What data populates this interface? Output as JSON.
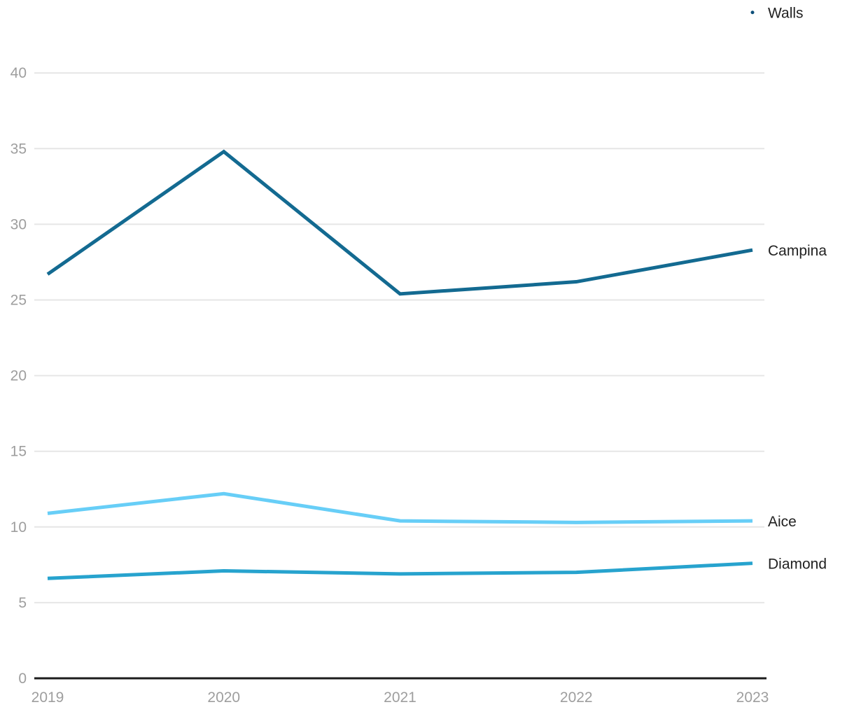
{
  "chart_data": {
    "type": "line",
    "title": "",
    "xlabel": "",
    "ylabel": "",
    "x": [
      2019,
      2020,
      2021,
      2022,
      2023
    ],
    "x_tick_labels": [
      "2019",
      "2020",
      "2021",
      "2022",
      "2023"
    ],
    "series": [
      {
        "name": "Walls",
        "color": "#0d4f79",
        "values": [
          null,
          null,
          null,
          null,
          44
        ]
      },
      {
        "name": "Campina",
        "color": "#136a91",
        "values": [
          26.7,
          34.8,
          25.4,
          26.2,
          28.3
        ]
      },
      {
        "name": "Aice",
        "color": "#67cef7",
        "values": [
          10.9,
          12.2,
          10.4,
          10.3,
          10.4
        ]
      },
      {
        "name": "Diamond",
        "color": "#27a3ce",
        "values": [
          6.6,
          7.1,
          6.9,
          7.0,
          7.6
        ]
      }
    ],
    "ylim": [
      0,
      44
    ],
    "yticks": [
      0,
      5,
      10,
      15,
      20,
      25,
      30,
      35,
      40
    ],
    "y_tick_labels": [
      "0",
      "5",
      "10",
      "15",
      "20",
      "25",
      "30",
      "35",
      "40"
    ],
    "grid": true,
    "legend_position": "labeled-right-of-line-end"
  },
  "colors": {
    "background": "#ffffff",
    "gridline": "#e6e6e6",
    "baseline": "#1c1c1c",
    "axis_label": "#9e9e9e",
    "series_label": "#212121"
  }
}
